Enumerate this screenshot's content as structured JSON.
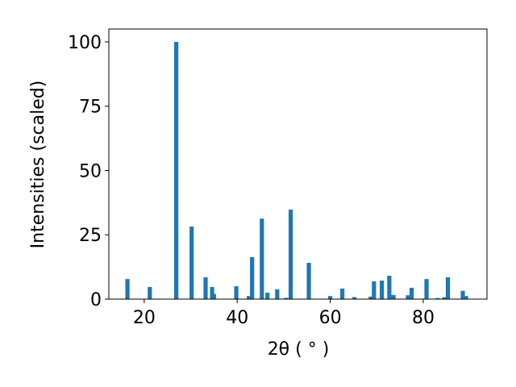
{
  "chart_data": {
    "type": "bar",
    "xlabel": "2θ ( ° )",
    "ylabel": "Intensities (scaled)",
    "x": [
      16.4,
      21.2,
      26.9,
      30.2,
      33.2,
      34.6,
      35.0,
      39.8,
      42.5,
      43.2,
      45.3,
      46.5,
      48.6,
      50.5,
      51.5,
      55.4,
      60.0,
      62.6,
      65.2,
      68.7,
      69.4,
      71.1,
      72.7,
      73.6,
      76.7,
      77.5,
      80.7,
      83.1,
      84.5,
      85.3,
      88.5,
      89.2
    ],
    "values": [
      7.8,
      4.7,
      100,
      28.2,
      8.5,
      4.7,
      2,
      5,
      1.2,
      16.3,
      31.3,
      2.5,
      3.8,
      0.5,
      34.8,
      14.1,
      1.2,
      4.1,
      0.8,
      1,
      6.9,
      7.2,
      9.1,
      1.6,
      1.5,
      4.4,
      7.8,
      0.4,
      0.7,
      8.5,
      3.2,
      1.2
    ],
    "color": "#1f77b4",
    "xlim": [
      12.4,
      93.7
    ],
    "xticks": [
      20,
      40,
      60,
      80
    ],
    "ylim": [
      0,
      105
    ],
    "yticks": [
      0,
      25,
      50,
      75,
      100
    ]
  }
}
